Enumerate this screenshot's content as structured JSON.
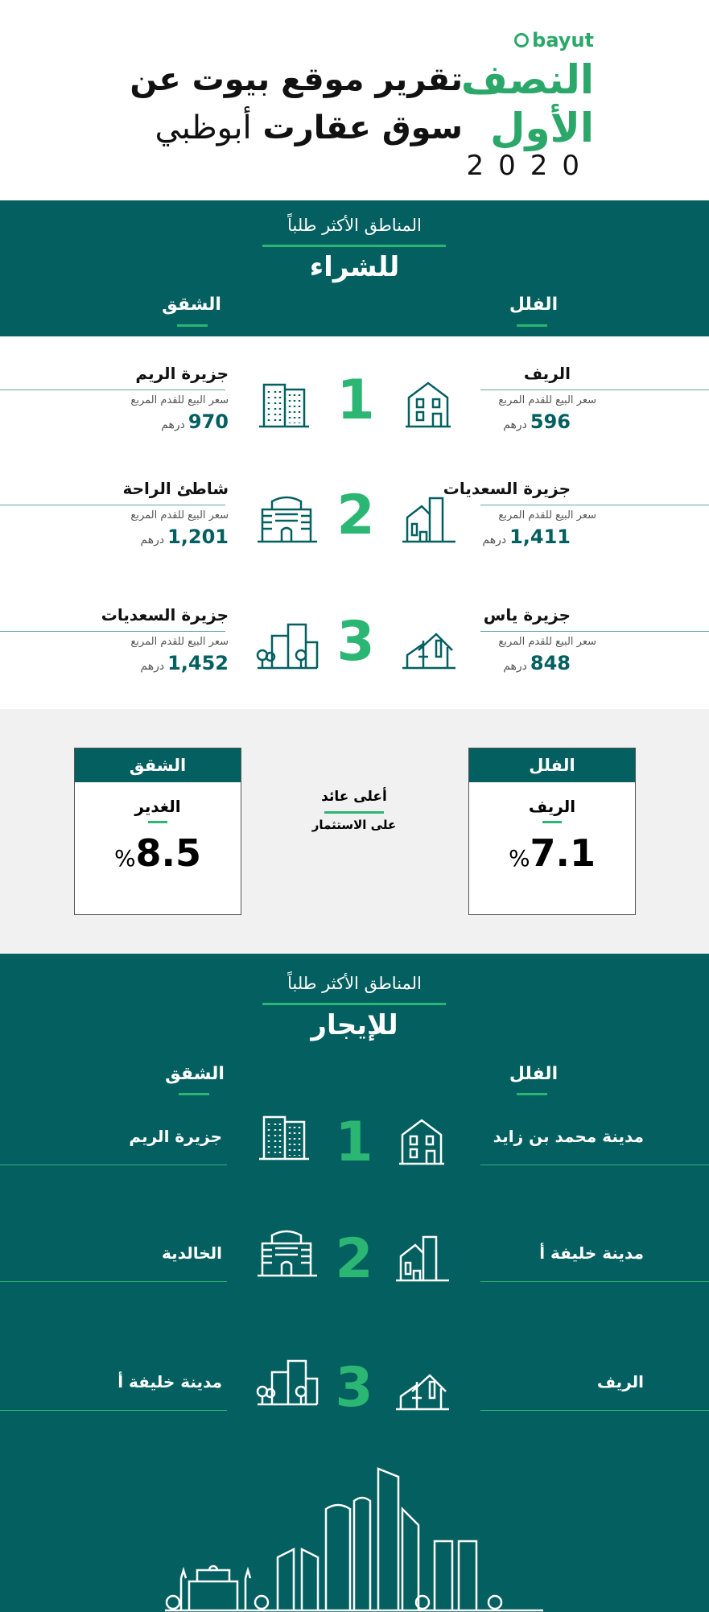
{
  "header": {
    "brand": "bayut",
    "title_line1": "تقرير موقع بيوت عن",
    "title_line2_bold": "سوق عقارت",
    "title_line2_light": "أبوظبي",
    "half_line1": "النصف",
    "half_line2": "الأول",
    "year": "2020"
  },
  "buy": {
    "subtitle": "المناطق الأكثر طلباً",
    "title": "للشراء",
    "villas_label": "الفلل",
    "apartments_label": "الشقق",
    "price_label": "سعر البيع للقدم المربع",
    "currency": "درهم",
    "rows": [
      {
        "rank": "1",
        "villa": "الريف",
        "villa_price": "596",
        "apt": "جزيرة الريم",
        "apt_price": "970"
      },
      {
        "rank": "2",
        "villa": "جزيرة السعديات",
        "villa_price": "1,411",
        "apt": "شاطئ الراحة",
        "apt_price": "1,201"
      },
      {
        "rank": "3",
        "villa": "جزيرة ياس",
        "villa_price": "848",
        "apt": "جزيرة السعديات",
        "apt_price": "1,452"
      }
    ]
  },
  "roi": {
    "title_line1": "أعلى عائد",
    "title_line2": "على الاستثمار",
    "villa": {
      "label": "الفلل",
      "area": "الريف",
      "value": "7.1",
      "unit": "%"
    },
    "apt": {
      "label": "الشقق",
      "area": "الغدير",
      "value": "8.5",
      "unit": "%"
    }
  },
  "rent": {
    "subtitle": "المناطق الأكثر طلباً",
    "title": "للإيجار",
    "villas_label": "الفلل",
    "apartments_label": "الشقق",
    "rows": [
      {
        "rank": "1",
        "villa": "مدينة محمد بن زايد",
        "apt": "جزيرة الريم"
      },
      {
        "rank": "2",
        "villa": "مدينة خليفة أ",
        "apt": "الخالدية"
      },
      {
        "rank": "3",
        "villa": "الريف",
        "apt": "مدينة خليفة أ"
      }
    ]
  },
  "colors": {
    "teal": "#035f60",
    "green": "#2bb673",
    "grey": "#f1f1f1"
  }
}
